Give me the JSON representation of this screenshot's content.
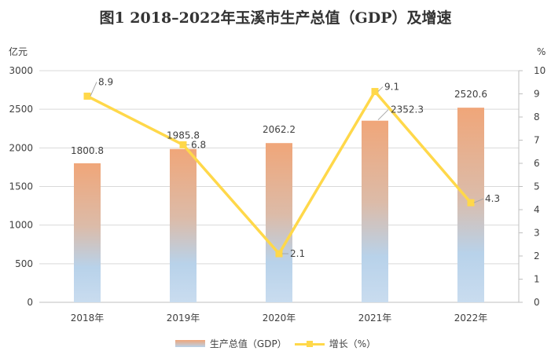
{
  "chart_data": {
    "type": "bar+line",
    "title": "图1   2018–2022年玉溪市生产总值（GDP）及增速",
    "categories": [
      "2018年",
      "2019年",
      "2020年",
      "2021年",
      "2022年"
    ],
    "series": [
      {
        "name": "生产总值（GDP）",
        "type": "bar",
        "axis": "left",
        "values": [
          1800.8,
          1985.8,
          2062.2,
          2352.3,
          2520.6
        ]
      },
      {
        "name": "增长（%）",
        "type": "line",
        "axis": "right",
        "values": [
          8.9,
          6.8,
          2.1,
          9.1,
          4.3
        ]
      }
    ],
    "y_left": {
      "unit_label": "亿元",
      "range": [
        0,
        3000
      ],
      "ticks": [
        0,
        500,
        1000,
        1500,
        2000,
        2500,
        3000
      ]
    },
    "y_right": {
      "unit_label": "%",
      "range": [
        0,
        10
      ],
      "ticks": [
        0,
        1,
        2,
        3,
        4,
        5,
        6,
        7,
        8,
        9,
        10
      ]
    },
    "grid": true,
    "legend_position": "bottom",
    "colors": {
      "bar_top": "#f0a679",
      "bar_bottom": "#b8d2ea",
      "line": "#ffd84a",
      "grid": "#d9d9d9",
      "axis_text": "#404040"
    }
  }
}
